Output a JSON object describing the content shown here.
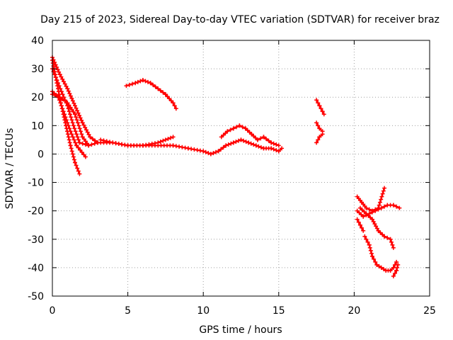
{
  "chart_data": {
    "type": "scatter",
    "title": "Day 215 of 2023, Sidereal Day-to-day VTEC variation (SDTVAR) for receiver braz",
    "xlabel": "GPS time / hours",
    "ylabel": "SDTVAR / TECUs",
    "xlim": [
      0,
      25
    ],
    "ylim": [
      -50,
      40
    ],
    "xticks": [
      "0",
      "5",
      "10",
      "15",
      "20",
      "25"
    ],
    "yticks": [
      "-50",
      "-40",
      "-30",
      "-20",
      "-10",
      "0",
      "10",
      "20",
      "30",
      "40"
    ],
    "grid": true,
    "color": "#ff0000",
    "marker": "plus",
    "series": [
      {
        "name": "s1",
        "x": [
          0.0,
          0.3,
          0.6,
          1.0,
          1.4,
          1.8,
          2.4,
          3.0,
          4.0,
          5.0,
          6.0,
          7.0,
          8.0
        ],
        "y": [
          30,
          26,
          22,
          17,
          10,
          4,
          3,
          4,
          4,
          3,
          3,
          4,
          6
        ]
      },
      {
        "name": "s2",
        "x": [
          0.0,
          0.3,
          0.6,
          0.9,
          1.2,
          1.5,
          1.8
        ],
        "y": [
          33,
          25,
          17,
          10,
          3,
          -3,
          -7
        ]
      },
      {
        "name": "s3",
        "x": [
          0.0,
          0.4,
          0.8,
          1.2,
          1.6,
          2.2
        ],
        "y": [
          22,
          20,
          14,
          8,
          3,
          -1
        ]
      },
      {
        "name": "s4",
        "x": [
          0.0,
          0.5,
          1.0,
          1.5,
          2.0,
          2.5,
          3.0
        ],
        "y": [
          34,
          28,
          23,
          17,
          11,
          6,
          4
        ]
      },
      {
        "name": "s5",
        "x": [
          0.0,
          0.5,
          1.0,
          1.5,
          2.0,
          2.4
        ],
        "y": [
          21,
          20,
          18,
          14,
          6,
          3
        ]
      },
      {
        "name": "s6",
        "x": [
          3.2,
          4.0,
          5.0,
          6.0,
          7.0,
          8.0,
          9.0,
          10.0,
          10.5,
          11.0,
          11.5,
          12.0,
          12.5,
          13.0,
          13.5,
          14.0,
          14.5,
          15.0,
          15.2
        ],
        "y": [
          5,
          4,
          3,
          3,
          3,
          3,
          2,
          1,
          0,
          1,
          3,
          4,
          5,
          4,
          3,
          2,
          2,
          1,
          2
        ]
      },
      {
        "name": "s7",
        "x": [
          11.2,
          11.6,
          12.0,
          12.4,
          12.8,
          13.2,
          13.6,
          14.0,
          14.5,
          15.0
        ],
        "y": [
          6,
          8,
          9,
          10,
          9,
          7,
          5,
          6,
          4,
          3
        ]
      },
      {
        "name": "s8",
        "x": [
          4.9,
          5.5,
          6.0,
          6.5,
          7.0,
          7.5,
          8.0,
          8.2
        ],
        "y": [
          24,
          25,
          26,
          25,
          23,
          21,
          18,
          16
        ]
      },
      {
        "name": "s9",
        "x": [
          17.5,
          17.7,
          17.9,
          18.0
        ],
        "y": [
          19,
          17,
          15,
          14
        ]
      },
      {
        "name": "s10",
        "x": [
          17.5,
          17.7,
          17.9
        ],
        "y": [
          11,
          9,
          8
        ]
      },
      {
        "name": "s11",
        "x": [
          17.5,
          17.7,
          17.9
        ],
        "y": [
          4,
          6,
          7
        ]
      },
      {
        "name": "s12",
        "x": [
          20.2,
          20.5,
          20.8,
          21.2,
          21.6,
          22.0
        ],
        "y": [
          -15,
          -17,
          -19,
          -20,
          -19,
          -12
        ]
      },
      {
        "name": "s13",
        "x": [
          20.2,
          20.6,
          21.0,
          21.4,
          21.8,
          22.2,
          22.6,
          23.0
        ],
        "y": [
          -20,
          -22,
          -21,
          -20,
          -19,
          -18,
          -18,
          -19
        ]
      },
      {
        "name": "s14",
        "x": [
          20.4,
          20.8,
          21.2,
          21.6,
          22.0,
          22.4,
          22.6
        ],
        "y": [
          -19,
          -21,
          -23,
          -27,
          -29,
          -30,
          -33
        ]
      },
      {
        "name": "s15",
        "x": [
          20.2,
          20.4,
          20.6
        ],
        "y": [
          -23,
          -25,
          -27
        ]
      },
      {
        "name": "s16",
        "x": [
          20.7,
          21.0,
          21.2,
          21.5,
          21.8,
          22.1,
          22.4,
          22.6,
          22.8
        ],
        "y": [
          -29,
          -32,
          -36,
          -39,
          -40,
          -41,
          -41,
          -40,
          -38
        ]
      },
      {
        "name": "s17",
        "x": [
          22.6,
          22.8,
          22.9
        ],
        "y": [
          -43,
          -41,
          -39
        ]
      }
    ]
  }
}
